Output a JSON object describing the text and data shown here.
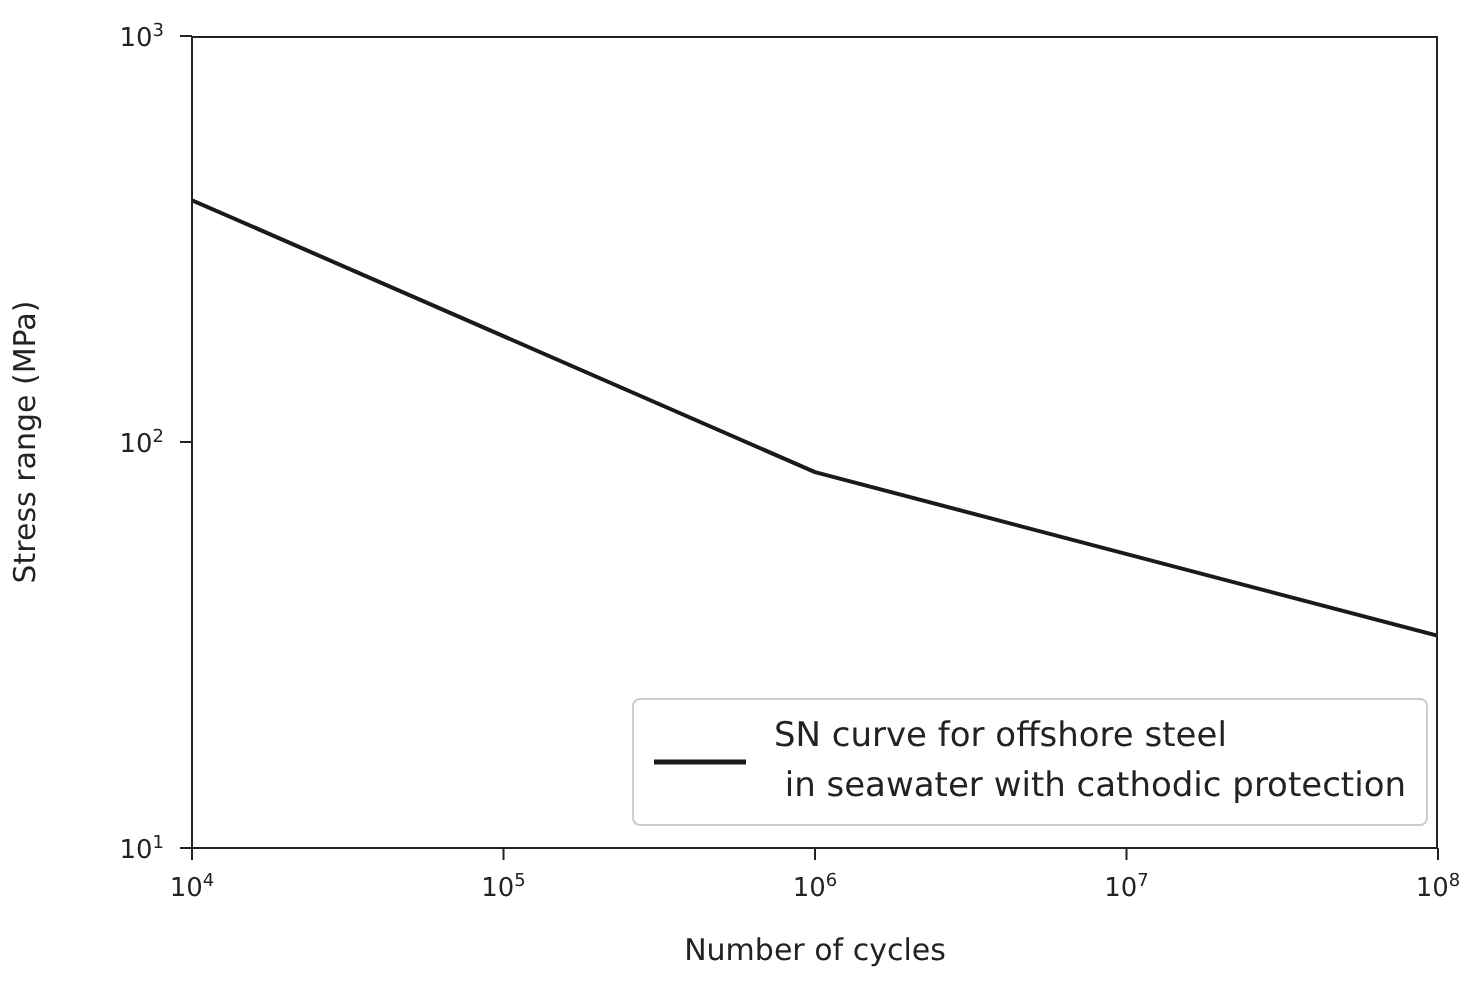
{
  "chart_data": {
    "type": "line",
    "xlabel": "Number of cycles",
    "ylabel": "Stress range (MPa)",
    "log": "xy",
    "grid": false,
    "legend": "bottom right",
    "x": [
      10000,
      1000000,
      100000000
    ],
    "series": [
      {
        "name": "SN curve for offshore steel\n in seawater with cathodic protection",
        "color": "#1a1a1a",
        "values": [
          394,
          84.3,
          33.3
        ]
      }
    ],
    "xlim": [
      10000,
      100000000
    ],
    "xticks": [
      {
        "value": 10000,
        "label": "10$^{4}$"
      },
      {
        "value": 100000,
        "label": "10$^{5}$"
      },
      {
        "value": 1000000,
        "label": "10$^{6}$"
      },
      {
        "value": 10000000,
        "label": "10$^{7}$"
      },
      {
        "value": 100000000,
        "label": "10$^{8}$"
      }
    ],
    "ylim": [
      10,
      1000
    ],
    "yticks": [
      {
        "value": 10,
        "label": "10$^{1}$"
      },
      {
        "value": 100,
        "label": "10$^{2}$"
      },
      {
        "value": 1000,
        "label": "10$^{3}$"
      }
    ],
    "marker": "none",
    "line_style": "solid"
  }
}
